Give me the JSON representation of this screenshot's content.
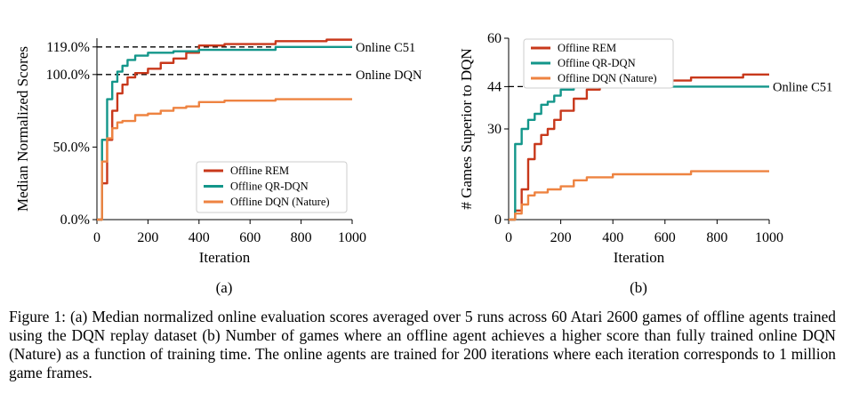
{
  "colors": {
    "rem": "#c8381b",
    "qrdqn": "#13968a",
    "dqn": "#ee8341",
    "axis": "#000000"
  },
  "chart_data": [
    {
      "type": "line",
      "panel_label": "(a)",
      "xlabel": "Iteration",
      "ylabel": "Median Normalized Scores",
      "xlim": [
        0,
        1000
      ],
      "ylim": [
        0,
        125
      ],
      "xticks": [
        0,
        200,
        400,
        600,
        800,
        1000
      ],
      "xticklabels": [
        "0",
        "200",
        "400",
        "600",
        "800",
        "1000"
      ],
      "yticks": [
        0,
        50,
        100,
        119
      ],
      "yticklabels": [
        "0.0%",
        "50.0%",
        "100.0%",
        "119.0%"
      ],
      "grid": false,
      "legend_position": "lower-right",
      "reference_lines": [
        {
          "label": "Online C51",
          "y": 119
        },
        {
          "label": "Online DQN",
          "y": 100
        }
      ],
      "series": [
        {
          "name": "Offline REM",
          "color_key": "rem",
          "x": [
            0,
            20,
            40,
            60,
            80,
            100,
            120,
            150,
            200,
            250,
            300,
            350,
            400,
            500,
            600,
            700,
            800,
            900,
            1000
          ],
          "y": [
            0,
            25,
            55,
            75,
            87,
            93,
            98,
            101,
            104,
            108,
            111,
            115,
            120,
            121,
            121,
            123,
            123,
            124,
            124
          ]
        },
        {
          "name": "Offline QR-DQN",
          "color_key": "qrdqn",
          "x": [
            0,
            20,
            40,
            60,
            80,
            100,
            120,
            150,
            200,
            250,
            300,
            400,
            600,
            700,
            800,
            1000
          ],
          "y": [
            0,
            55,
            83,
            95,
            102,
            106,
            110,
            113,
            115,
            115,
            116,
            117,
            117,
            119,
            119,
            119
          ]
        },
        {
          "name": "Offline DQN (Nature)",
          "color_key": "dqn",
          "x": [
            0,
            20,
            40,
            60,
            80,
            100,
            150,
            200,
            250,
            300,
            350,
            400,
            500,
            600,
            700,
            800,
            900,
            1000
          ],
          "y": [
            0,
            40,
            56,
            63,
            67,
            68,
            72,
            73,
            75,
            77,
            78,
            81,
            82,
            82,
            83,
            83,
            83,
            83
          ]
        }
      ]
    },
    {
      "type": "line",
      "panel_label": "(b)",
      "xlabel": "Iteration",
      "ylabel": "# Games Superior to DQN",
      "xlim": [
        0,
        1000
      ],
      "ylim": [
        0,
        60
      ],
      "xticks": [
        0,
        200,
        400,
        600,
        800,
        1000
      ],
      "xticklabels": [
        "0",
        "200",
        "400",
        "600",
        "800",
        "1000"
      ],
      "yticks": [
        0,
        30,
        44,
        60
      ],
      "yticklabels": [
        "0",
        "30",
        "44",
        "60"
      ],
      "grid": false,
      "legend_position": "top-left",
      "reference_lines": [
        {
          "label": "Online C51",
          "y": 44
        }
      ],
      "series": [
        {
          "name": "Offline REM",
          "color_key": "rem",
          "x": [
            0,
            25,
            50,
            75,
            100,
            125,
            150,
            175,
            200,
            250,
            300,
            350,
            400,
            500,
            600,
            700,
            800,
            900,
            1000
          ],
          "y": [
            0,
            3,
            10,
            20,
            25,
            28,
            30,
            33,
            36,
            40,
            43,
            45,
            46,
            46,
            46,
            47,
            47,
            48,
            48
          ]
        },
        {
          "name": "Offline QR-DQN",
          "color_key": "qrdqn",
          "x": [
            0,
            25,
            50,
            75,
            100,
            125,
            150,
            175,
            200,
            250,
            300,
            400,
            600,
            800,
            1000
          ],
          "y": [
            0,
            25,
            30,
            33,
            35,
            38,
            39,
            41,
            43,
            44,
            44,
            44,
            44,
            44,
            44
          ]
        },
        {
          "name": "Offline DQN (Nature)",
          "color_key": "dqn",
          "x": [
            0,
            25,
            50,
            75,
            100,
            150,
            200,
            250,
            300,
            350,
            400,
            500,
            600,
            700,
            800,
            900,
            1000
          ],
          "y": [
            0,
            2,
            5,
            8,
            9,
            10,
            11,
            13,
            14,
            14,
            15,
            15,
            15,
            16,
            16,
            16,
            16
          ]
        }
      ]
    }
  ],
  "caption_lines": [
    "Figure 1: (a) Median normalized online evaluation scores averaged over 5 runs across 60 Atari 2600 games of",
    "offline agents trained using the DQN replay dataset (b) Number of games where an offline agent achieves a",
    "higher score than fully trained online DQN (Nature) as a function of training time. The online agents are trained",
    "for 200 iterations where each iteration corresponds to 1 million game frames."
  ]
}
